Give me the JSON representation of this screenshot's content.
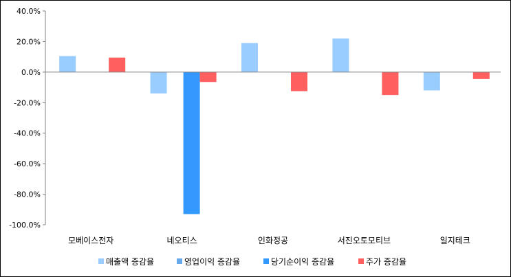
{
  "chart_data": {
    "type": "bar",
    "categories": [
      "모베이스전자",
      "네오티스",
      "인화정공",
      "서진오토모티브",
      "일지테크"
    ],
    "series": [
      {
        "name": "매출액 증감율",
        "color": "#99ccff",
        "values": [
          10.5,
          -14.0,
          19.0,
          22.0,
          -12.0
        ]
      },
      {
        "name": "영업이익 증감율",
        "color": "#66aaee",
        "values": [
          0,
          0,
          0,
          0,
          0
        ]
      },
      {
        "name": "당기순이익 증감율",
        "color": "#3399ff",
        "values": [
          0,
          -93.0,
          0,
          0,
          0
        ]
      },
      {
        "name": "주가 증감율",
        "color": "#ff5f5f",
        "values": [
          9.5,
          -6.5,
          -12.5,
          -15.0,
          -4.5
        ]
      }
    ],
    "ylim": [
      -100,
      40
    ],
    "ytick_step": 20,
    "ytick_labels": [
      "40.0%",
      "20.0%",
      "0.0%",
      "-20.0%",
      "-40.0%",
      "-60.0%",
      "-80.0%",
      "-100.0%"
    ],
    "legend_position": "bottom",
    "grid": false
  }
}
